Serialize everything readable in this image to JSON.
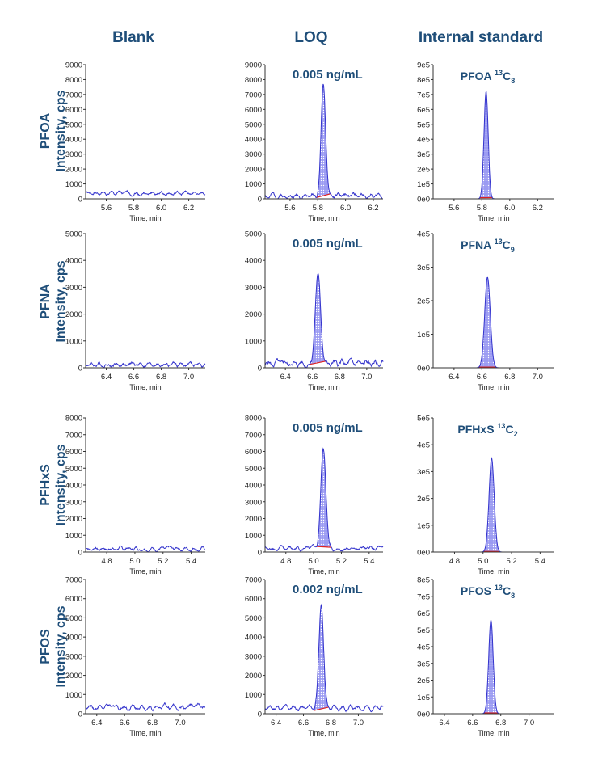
{
  "columns": [
    "Blank",
    "LOQ",
    "Internal standard"
  ],
  "row_labels": [
    {
      "analyte": "PFOA",
      "ylabel": "Intensity, cps"
    },
    {
      "analyte": "PFNA",
      "ylabel": "Intensity, cps"
    },
    {
      "analyte": "PFHxS",
      "ylabel": "Intensity, cps"
    },
    {
      "analyte": "PFOS",
      "ylabel": "Intensity, cps"
    }
  ],
  "colors": {
    "trace": "#3333cc",
    "fill": "#8f8fef",
    "baseline": "#dd2222",
    "annotation": "#1f4e79",
    "axis": "#333333"
  },
  "chart_data": [
    {
      "type": "line",
      "column": "Blank",
      "row": "PFOA",
      "xlabel": "Time, min",
      "xlim": [
        5.45,
        6.32
      ],
      "xticks": [
        5.6,
        5.8,
        6.0,
        6.2
      ],
      "ylim": [
        0,
        9000
      ],
      "yticks": [
        0,
        1000,
        2000,
        3000,
        4000,
        5000,
        6000,
        7000,
        8000,
        9000
      ],
      "ytick_labels": [
        "0",
        "1000",
        "2000",
        "3000",
        "4000",
        "5000",
        "6000",
        "7000",
        "8000",
        "9000"
      ],
      "peak": null,
      "noise": {
        "level": 350,
        "amp": 120,
        "seed": 1
      },
      "annotation": null
    },
    {
      "type": "line",
      "column": "LOQ",
      "row": "PFOA",
      "xlabel": "Time, min",
      "xlim": [
        5.42,
        6.27
      ],
      "xticks": [
        5.6,
        5.8,
        6.0,
        6.2
      ],
      "ylim": [
        0,
        9000
      ],
      "yticks": [
        0,
        1000,
        2000,
        3000,
        4000,
        5000,
        6000,
        7000,
        8000,
        9000
      ],
      "ytick_labels": [
        "0",
        "1000",
        "2000",
        "3000",
        "4000",
        "5000",
        "6000",
        "7000",
        "8000",
        "9000"
      ],
      "peak": {
        "center": 5.84,
        "height": 7600,
        "sigma": 0.016
      },
      "noise": {
        "level": 200,
        "amp": 150,
        "seed": 2
      },
      "annotation": {
        "text": "0.005 ng/mL",
        "sub": ""
      }
    },
    {
      "type": "line",
      "column": "Internal standard",
      "row": "PFOA",
      "xlabel": "Time, min",
      "xlim": [
        5.45,
        6.32
      ],
      "xticks": [
        5.6,
        5.8,
        6.0,
        6.2
      ],
      "ylim": [
        0,
        900000
      ],
      "yticks": [
        0,
        100000,
        200000,
        300000,
        400000,
        500000,
        600000,
        700000,
        800000,
        900000
      ],
      "ytick_labels": [
        "0e0",
        "1e5",
        "2e5",
        "3e5",
        "4e5",
        "5e5",
        "6e5",
        "7e5",
        "8e5",
        "9e5"
      ],
      "peak": {
        "center": 5.83,
        "height": 720000,
        "sigma": 0.015
      },
      "noise": {
        "level": 0,
        "amp": 0,
        "seed": 3
      },
      "annotation": {
        "text": "PFOA ",
        "sup": "13",
        "main": "C",
        "sub": "8"
      }
    },
    {
      "type": "line",
      "column": "Blank",
      "row": "PFNA",
      "xlabel": "Time, min",
      "xlim": [
        6.25,
        7.12
      ],
      "xticks": [
        6.4,
        6.6,
        6.8,
        7.0
      ],
      "ylim": [
        0,
        5000
      ],
      "yticks": [
        0,
        1000,
        2000,
        3000,
        4000,
        5000
      ],
      "ytick_labels": [
        "0",
        "1000",
        "2000",
        "3000",
        "4000",
        "5000"
      ],
      "peak": null,
      "noise": {
        "level": 120,
        "amp": 80,
        "seed": 4
      },
      "annotation": null
    },
    {
      "type": "line",
      "column": "LOQ",
      "row": "PFNA",
      "xlabel": "Time, min",
      "xlim": [
        6.25,
        7.12
      ],
      "xticks": [
        6.4,
        6.6,
        6.8,
        7.0
      ],
      "ylim": [
        0,
        5000
      ],
      "yticks": [
        0,
        1000,
        2000,
        3000,
        4000,
        5000
      ],
      "ytick_labels": [
        "0",
        "1000",
        "2000",
        "3000",
        "4000",
        "5000"
      ],
      "peak": {
        "center": 6.64,
        "height": 3300,
        "sigma": 0.02
      },
      "noise": {
        "level": 150,
        "amp": 120,
        "seed": 5
      },
      "annotation": {
        "text": "0.005 ng/mL",
        "sub": ""
      }
    },
    {
      "type": "line",
      "column": "Internal standard",
      "row": "PFNA",
      "xlabel": "Time, min",
      "xlim": [
        6.25,
        7.12
      ],
      "xticks": [
        6.4,
        6.6,
        6.8,
        7.0
      ],
      "ylim": [
        0,
        400000
      ],
      "yticks": [
        0,
        100000,
        200000,
        300000,
        400000
      ],
      "ytick_labels": [
        "0e0",
        "1e5",
        "2e5",
        "3e5",
        "4e5"
      ],
      "peak": {
        "center": 6.64,
        "height": 270000,
        "sigma": 0.02
      },
      "noise": {
        "level": 0,
        "amp": 0,
        "seed": 6
      },
      "annotation": {
        "text": "PFNA ",
        "sup": "13",
        "main": "C",
        "sub": "9"
      }
    },
    {
      "type": "line",
      "column": "Blank",
      "row": "PFHxS",
      "xlabel": "Time, min",
      "xlim": [
        4.65,
        5.5
      ],
      "xticks": [
        4.8,
        5.0,
        5.2,
        5.4
      ],
      "ylim": [
        0,
        8000
      ],
      "yticks": [
        0,
        1000,
        2000,
        3000,
        4000,
        5000,
        6000,
        7000,
        8000
      ],
      "ytick_labels": [
        "0",
        "1000",
        "2000",
        "3000",
        "4000",
        "5000",
        "6000",
        "7000",
        "8000"
      ],
      "peak": null,
      "noise": {
        "level": 200,
        "amp": 110,
        "seed": 7
      },
      "annotation": null
    },
    {
      "type": "line",
      "column": "LOQ",
      "row": "PFHxS",
      "xlabel": "Time, min",
      "xlim": [
        4.65,
        5.5
      ],
      "xticks": [
        4.8,
        5.0,
        5.2,
        5.4
      ],
      "ylim": [
        0,
        8000
      ],
      "yticks": [
        0,
        1000,
        2000,
        3000,
        4000,
        5000,
        6000,
        7000,
        8000
      ],
      "ytick_labels": [
        "0",
        "1000",
        "2000",
        "3000",
        "4000",
        "5000",
        "6000",
        "7000",
        "8000"
      ],
      "peak": {
        "center": 5.07,
        "height": 6000,
        "sigma": 0.018
      },
      "noise": {
        "level": 200,
        "amp": 120,
        "seed": 8
      },
      "annotation": {
        "text": "0.005 ng/mL",
        "sub": ""
      }
    },
    {
      "type": "line",
      "column": "Internal standard",
      "row": "PFHxS",
      "xlabel": "Time, min",
      "xlim": [
        4.65,
        5.5
      ],
      "xticks": [
        4.8,
        5.0,
        5.2,
        5.4
      ],
      "ylim": [
        0,
        500000
      ],
      "yticks": [
        0,
        100000,
        200000,
        300000,
        400000,
        500000
      ],
      "ytick_labels": [
        "0e0",
        "1e5",
        "2e5",
        "3e5",
        "4e5",
        "5e5"
      ],
      "peak": {
        "center": 5.06,
        "height": 350000,
        "sigma": 0.018
      },
      "noise": {
        "level": 0,
        "amp": 0,
        "seed": 9
      },
      "annotation": {
        "text": "PFHxS ",
        "sup": "13",
        "main": "C",
        "sub": "2"
      }
    },
    {
      "type": "line",
      "column": "Blank",
      "row": "PFOS",
      "xlabel": "Time, min",
      "xlim": [
        6.32,
        7.18
      ],
      "xticks": [
        6.4,
        6.6,
        6.8,
        7.0
      ],
      "ylim": [
        0,
        7000
      ],
      "yticks": [
        0,
        1000,
        2000,
        3000,
        4000,
        5000,
        6000,
        7000
      ],
      "ytick_labels": [
        "0",
        "1000",
        "2000",
        "3000",
        "4000",
        "5000",
        "6000",
        "7000"
      ],
      "peak": null,
      "noise": {
        "level": 350,
        "amp": 130,
        "seed": 10
      },
      "annotation": null
    },
    {
      "type": "line",
      "column": "LOQ",
      "row": "PFOS",
      "xlabel": "Time, min",
      "xlim": [
        6.32,
        7.18
      ],
      "xticks": [
        6.4,
        6.6,
        6.8,
        7.0
      ],
      "ylim": [
        0,
        7000
      ],
      "yticks": [
        0,
        1000,
        2000,
        3000,
        4000,
        5000,
        6000,
        7000
      ],
      "ytick_labels": [
        "0",
        "1000",
        "2000",
        "3000",
        "4000",
        "5000",
        "6000",
        "7000"
      ],
      "peak": {
        "center": 6.73,
        "height": 5400,
        "sigma": 0.017
      },
      "noise": {
        "level": 300,
        "amp": 120,
        "seed": 11
      },
      "annotation": {
        "text": "0.002 ng/mL",
        "sub": ""
      }
    },
    {
      "type": "line",
      "column": "Internal standard",
      "row": "PFOS",
      "xlabel": "Time, min",
      "xlim": [
        6.32,
        7.18
      ],
      "xticks": [
        6.4,
        6.6,
        6.8,
        7.0
      ],
      "ylim": [
        0,
        800000
      ],
      "yticks": [
        0,
        100000,
        200000,
        300000,
        400000,
        500000,
        600000,
        700000,
        800000
      ],
      "ytick_labels": [
        "0e0",
        "1e5",
        "2e5",
        "3e5",
        "4e5",
        "5e5",
        "6e5",
        "7e5",
        "8e5"
      ],
      "peak": {
        "center": 6.73,
        "height": 560000,
        "sigma": 0.016
      },
      "noise": {
        "level": 0,
        "amp": 0,
        "seed": 12
      },
      "annotation": {
        "text": "PFOS ",
        "sup": "13",
        "main": "C",
        "sub": "8"
      }
    }
  ]
}
